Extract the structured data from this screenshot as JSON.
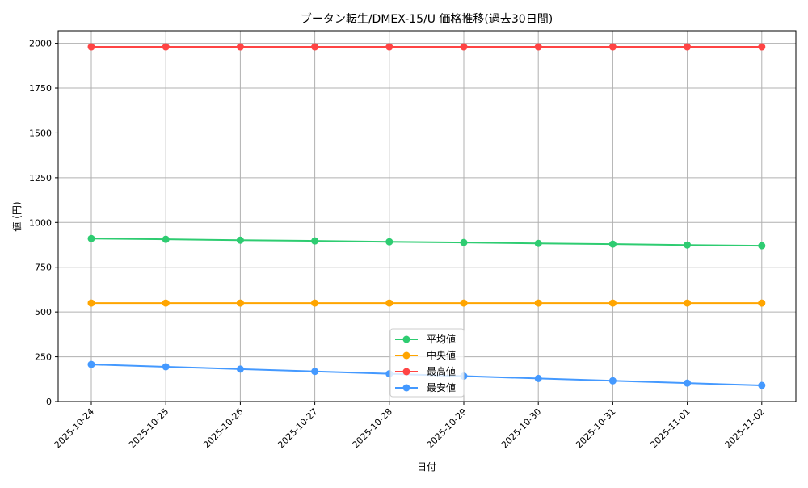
{
  "chart_data": {
    "type": "line",
    "title": "ブータン転生/DMEX-15/U 価格推移(過去30日間)",
    "xlabel": "日付",
    "ylabel": "値 (円)",
    "ylim": [
      0,
      2070
    ],
    "yticks": [
      0,
      250,
      500,
      750,
      1000,
      1250,
      1500,
      1750,
      2000
    ],
    "grid": true,
    "legend_position": "bottom-center",
    "categories": [
      "2025-10-24",
      "2025-10-25",
      "2025-10-26",
      "2025-10-27",
      "2025-10-28",
      "2025-10-29",
      "2025-10-30",
      "2025-10-31",
      "2025-11-01",
      "2025-11-02"
    ],
    "series": [
      {
        "name": "平均値",
        "color": "#2ecc71",
        "values": [
          910,
          906,
          901,
          897,
          892,
          888,
          883,
          879,
          874,
          870
        ]
      },
      {
        "name": "中央値",
        "color": "#ffa500",
        "values": [
          550,
          550,
          550,
          550,
          550,
          550,
          550,
          550,
          550,
          550
        ]
      },
      {
        "name": "最高値",
        "color": "#ff4444",
        "values": [
          1980,
          1980,
          1980,
          1980,
          1980,
          1980,
          1980,
          1980,
          1980,
          1980
        ]
      },
      {
        "name": "最安値",
        "color": "#4499ff",
        "values": [
          207,
          194,
          181,
          168,
          155,
          142,
          129,
          116,
          103,
          90
        ]
      }
    ]
  }
}
